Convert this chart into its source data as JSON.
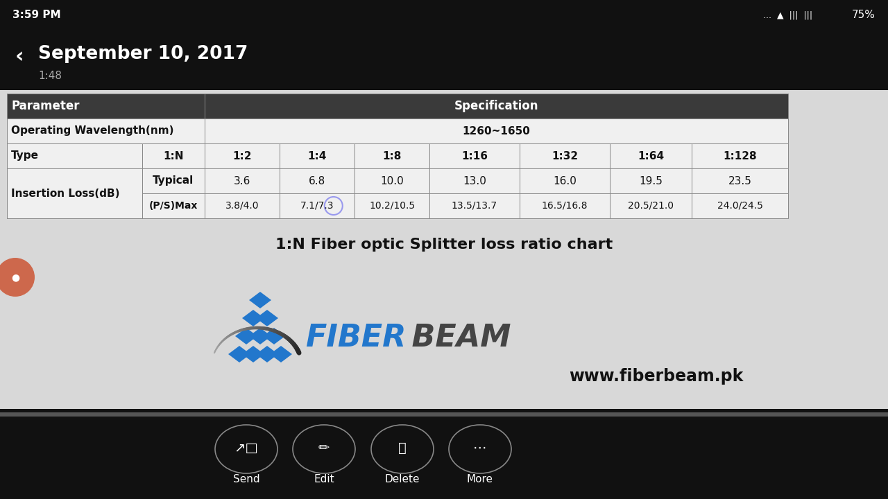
{
  "status_bar_text": "3:59 PM",
  "status_bar_right": "75%",
  "header_text": "September 10, 2017",
  "subheader_text": "1:48",
  "table_title": "1:N Fiber optic Splitter loss ratio chart",
  "website": "www.fiberbeam.pk",
  "row2_types": [
    "1:2",
    "1:4",
    "1:8",
    "1:16",
    "1:32",
    "1:64",
    "1:128"
  ],
  "row3_typical_label": "Typical",
  "row3_typical_vals": [
    "3.6",
    "6.8",
    "10.0",
    "13.0",
    "16.0",
    "19.5",
    "23.5"
  ],
  "row3_psmax_label": "(P/S)Max",
  "row3_psmax_vals": [
    "3.8/4.0",
    "7.1/7.3",
    "10.2/10.5",
    "13.5/13.7",
    "16.5/16.8",
    "20.5/21.0",
    "24.0/24.5"
  ],
  "nav_labels": [
    "Send",
    "Edit",
    "Delete",
    "More"
  ],
  "fiber_blue": "#2277cc",
  "fiber_dark": "#444444",
  "header_bg": "#3a3a3a",
  "cell_bg": "#f0f0f0",
  "border_color": "#888888",
  "bg_dark": "#111111",
  "bg_content": "#d8d8d8"
}
